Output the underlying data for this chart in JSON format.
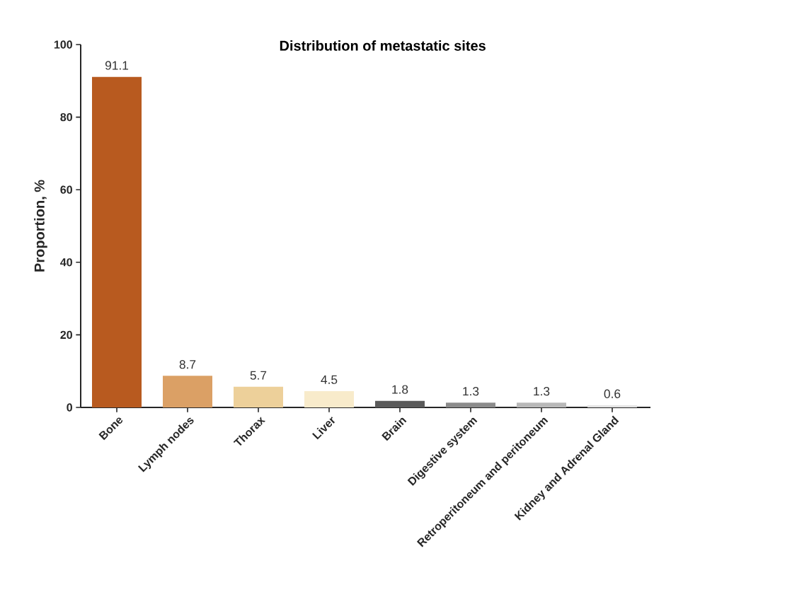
{
  "chart_data": {
    "type": "bar",
    "title": "Distribution of metastatic sites",
    "ylabel": "Proportion, %",
    "categories": [
      "Bone",
      "Lymph nodes",
      "Thorax",
      "Liver",
      "Brain",
      "Digestive system",
      "Retroperitoneum and peritoneum",
      "Kidney and Adrenal Gland"
    ],
    "values": [
      91.1,
      8.7,
      5.7,
      4.5,
      1.8,
      1.3,
      1.3,
      0.6
    ],
    "colors": [
      "#b85a1f",
      "#dba065",
      "#edd09a",
      "#f8ebcb",
      "#5a5a5a",
      "#8c8c8c",
      "#b8b8b8",
      "#e2e2e2"
    ],
    "ylim": [
      0,
      100
    ],
    "yticks": [
      0,
      20,
      40,
      60,
      80,
      100
    ],
    "data_labels": true,
    "grid": false
  }
}
